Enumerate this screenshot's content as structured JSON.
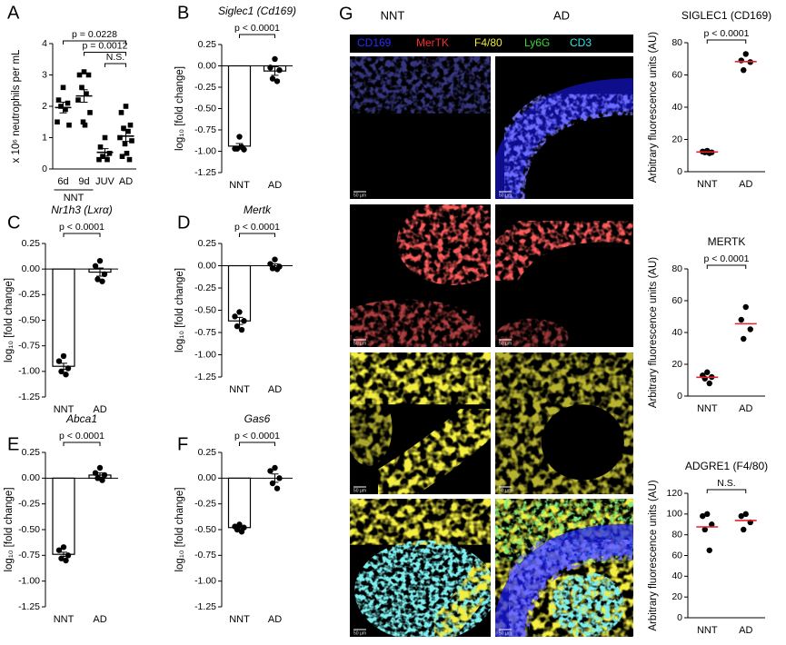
{
  "chart_data": [
    {
      "type": "dotplot",
      "panel": "A",
      "ylabel": "x 10⁶ neutrophils per mL",
      "categories": [
        "6d",
        "9d",
        "JUV",
        "AD"
      ],
      "group_label": "NNT",
      "group_span": [
        "6d",
        "9d"
      ],
      "points": [
        [
          2.6,
          2.2,
          2.1,
          2.0,
          1.9,
          1.5,
          1.4
        ],
        [
          3.1,
          3.0,
          3.0,
          2.6,
          2.4,
          2.2,
          1.8,
          1.5,
          1.4
        ],
        [
          1.0,
          0.7,
          0.5,
          0.4,
          0.3,
          0.3
        ],
        [
          2.0,
          1.8,
          1.4,
          1.3,
          1.2,
          1.0,
          0.9,
          0.8,
          0.5,
          0.4,
          0.3
        ]
      ],
      "means": [
        1.96,
        2.33,
        0.53,
        1.05
      ],
      "sems": [
        0.17,
        0.2,
        0.12,
        0.17
      ],
      "marker": "square",
      "point_color": "#000000",
      "mean_color": "#000000",
      "ylim": [
        0,
        4
      ],
      "yticks": [
        0,
        1,
        2,
        3,
        4
      ],
      "annotations": [
        {
          "text": "p = 0.0228",
          "from": "6d",
          "to": "AD"
        },
        {
          "text": "p = 0.0012",
          "from": "9d",
          "to": "AD"
        },
        {
          "text": "N.S.",
          "from": "JUV",
          "to": "AD"
        }
      ]
    },
    {
      "type": "bar",
      "panel": "B",
      "title": "Siglec1 (Cd169)",
      "title_italic": true,
      "ylabel": "log₁₀ [fold change]",
      "categories": [
        "NNT",
        "AD"
      ],
      "values": [
        -0.94,
        -0.06
      ],
      "sems": [
        0.03,
        0.05
      ],
      "points": [
        [
          -0.83,
          -0.97,
          -0.98,
          -0.97,
          -0.95
        ],
        [
          0.08,
          -0.02,
          -0.05,
          -0.15,
          -0.18
        ]
      ],
      "bar_color": "#ffffff",
      "point_color": "#000000",
      "ylim": [
        -1.25,
        0.25
      ],
      "yticks": [
        0.25,
        {
          "value": 0,
          "label": "0.00"
        },
        -0.25,
        {
          "value": -0.5,
          "label": "-0.50"
        },
        -0.75,
        {
          "value": -1,
          "label": "-1.00"
        },
        -1.25
      ],
      "annotations": [
        {
          "text": "p < 0.0001",
          "from": "NNT",
          "to": "AD"
        }
      ]
    },
    {
      "type": "bar",
      "panel": "C",
      "title": "Nr1h3 (Lxrα)",
      "title_italic": true,
      "ylabel": "log₁₀ [fold change]",
      "categories": [
        "NNT",
        "AD"
      ],
      "values": [
        -0.95,
        -0.03
      ],
      "sems": [
        0.03,
        0.04
      ],
      "points": [
        [
          -0.85,
          -0.9,
          -0.97,
          -1.0,
          -1.03
        ],
        [
          0.08,
          0.03,
          -0.05,
          -0.1,
          -0.12
        ]
      ],
      "bar_color": "#ffffff",
      "point_color": "#000000",
      "ylim": [
        -1.25,
        0.25
      ],
      "yticks": [
        0.25,
        {
          "value": 0,
          "label": "0.00"
        },
        -0.25,
        {
          "value": -0.5,
          "label": "-0.50"
        },
        -0.75,
        {
          "value": -1,
          "label": "-1.00"
        },
        -1.25
      ],
      "annotations": [
        {
          "text": "p < 0.0001",
          "from": "NNT",
          "to": "AD"
        }
      ]
    },
    {
      "type": "bar",
      "panel": "D",
      "title": "Mertk",
      "title_italic": true,
      "ylabel": "log₁₀ [fold change]",
      "categories": [
        "NNT",
        "AD"
      ],
      "values": [
        -0.62,
        0.0
      ],
      "sems": [
        0.04,
        0.02
      ],
      "points": [
        [
          -0.52,
          -0.57,
          -0.62,
          -0.68,
          -0.72
        ],
        [
          0.07,
          0.02,
          -0.01,
          -0.03,
          -0.04
        ]
      ],
      "bar_color": "#ffffff",
      "point_color": "#000000",
      "ylim": [
        -1.25,
        0.25
      ],
      "yticks": [
        0.25,
        {
          "value": 0,
          "label": "0.00"
        },
        -0.25,
        {
          "value": -0.5,
          "label": "-0.50"
        },
        -0.75,
        {
          "value": -1,
          "label": "-1.00"
        },
        -1.25
      ],
      "annotations": [
        {
          "text": "p < 0.0001",
          "from": "NNT",
          "to": "AD"
        }
      ]
    },
    {
      "type": "bar",
      "panel": "E",
      "title": "Abca1",
      "title_italic": true,
      "ylabel": "log₁₀ [fold change]",
      "categories": [
        "NNT",
        "AD"
      ],
      "values": [
        -0.74,
        0.03
      ],
      "sems": [
        0.02,
        0.02
      ],
      "points": [
        [
          -0.67,
          -0.7,
          -0.75,
          -0.78,
          -0.8
        ],
        [
          0.1,
          0.05,
          0.03,
          0.0,
          -0.02
        ]
      ],
      "bar_color": "#ffffff",
      "point_color": "#000000",
      "ylim": [
        -1.25,
        0.25
      ],
      "yticks": [
        0.25,
        {
          "value": 0,
          "label": "0.00"
        },
        -0.25,
        {
          "value": -0.5,
          "label": "-0.50"
        },
        -0.75,
        {
          "value": -1,
          "label": "-1.00"
        },
        -1.25
      ],
      "annotations": [
        {
          "text": "p < 0.0001",
          "from": "NNT",
          "to": "AD"
        }
      ]
    },
    {
      "type": "bar",
      "panel": "F",
      "title": "Gas6",
      "title_italic": true,
      "ylabel": "log₁₀ [fold change]",
      "categories": [
        "NNT",
        "AD"
      ],
      "values": [
        -0.48,
        0.0
      ],
      "sems": [
        0.01,
        0.04
      ],
      "points": [
        [
          -0.45,
          -0.47,
          -0.48,
          -0.5,
          -0.52
        ],
        [
          0.1,
          0.07,
          0.0,
          -0.05,
          -0.1
        ]
      ],
      "bar_color": "#ffffff",
      "point_color": "#000000",
      "ylim": [
        -1.25,
        0.25
      ],
      "yticks": [
        0.25,
        {
          "value": 0,
          "label": "0.00"
        },
        -0.25,
        {
          "value": -0.5,
          "label": "-0.50"
        },
        -0.75,
        {
          "value": -1,
          "label": "-1.00"
        },
        -1.25
      ],
      "annotations": [
        {
          "text": "p < 0.0001",
          "from": "NNT",
          "to": "AD"
        }
      ]
    },
    {
      "type": "dotplot",
      "title": "SIGLEC1 (CD169)",
      "ylabel": "Arbitrary fluorescence units (AU)",
      "categories": [
        "NNT",
        "AD"
      ],
      "points": [
        [
          13,
          12.5,
          12,
          12,
          11.5
        ],
        [
          73,
          69,
          68,
          63
        ]
      ],
      "means": [
        12.2,
        68.25
      ],
      "marker": "circle",
      "point_color": "#000000",
      "mean_color": "#e8202a",
      "ylim": [
        0,
        80
      ],
      "yticks": [
        0,
        20,
        40,
        60,
        80
      ],
      "annotations": [
        {
          "text": "p < 0.0001",
          "from": "NNT",
          "to": "AD"
        }
      ]
    },
    {
      "type": "dotplot",
      "title": "MERTK",
      "ylabel": "Arbitrary fluorescence units (AU)",
      "categories": [
        "NNT",
        "AD"
      ],
      "points": [
        [
          15,
          13,
          12,
          11,
          8
        ],
        [
          56,
          48,
          42,
          36
        ]
      ],
      "means": [
        11.8,
        45.5
      ],
      "marker": "circle",
      "point_color": "#000000",
      "mean_color": "#e8202a",
      "ylim": [
        0,
        80
      ],
      "yticks": [
        0,
        20,
        40,
        60,
        80
      ],
      "annotations": [
        {
          "text": "p < 0.0001",
          "from": "NNT",
          "to": "AD"
        }
      ]
    },
    {
      "type": "dotplot",
      "title": "ADGRE1 (F4/80)",
      "ylabel": "Arbitrary fluorescence units (AU)",
      "categories": [
        "NNT",
        "AD"
      ],
      "points": [
        [
          100,
          98,
          90,
          85,
          65
        ],
        [
          100,
          98,
          92,
          85
        ]
      ],
      "means": [
        87.6,
        93.75
      ],
      "marker": "circle",
      "point_color": "#000000",
      "mean_color": "#e8202a",
      "ylim": [
        0,
        120
      ],
      "yticks": [
        0,
        20,
        40,
        60,
        80,
        100,
        120
      ],
      "annotations": [
        {
          "text": "N.S.",
          "from": "NNT",
          "to": "AD"
        }
      ]
    }
  ],
  "image_panel": {
    "panel": "G",
    "columns": [
      "NNT",
      "AD"
    ],
    "channels": [
      {
        "name": "CD169",
        "color": "#2a2aff"
      },
      {
        "name": "MerTK",
        "color": "#ff2a2a"
      },
      {
        "name": "F4/80",
        "color": "#f2ec2a"
      },
      {
        "name": "Ly6G",
        "color": "#3ad83a"
      },
      {
        "name": "CD3",
        "color": "#2ee6e6"
      }
    ],
    "scale_bar": "50 µm"
  }
}
